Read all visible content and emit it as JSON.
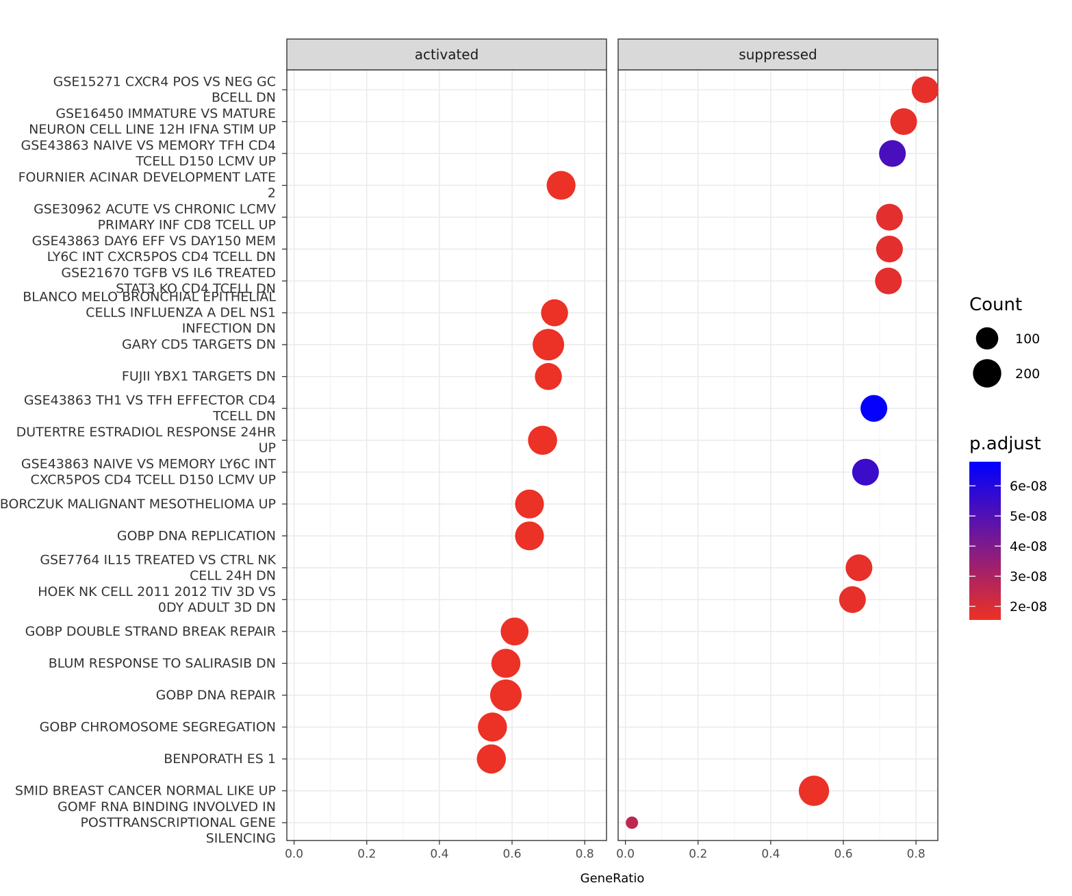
{
  "chart_data": {
    "type": "scatter",
    "xlabel": "GeneRatio",
    "xlim": [
      -0.02,
      0.86
    ],
    "x_ticks": [
      "0.0",
      "0.2",
      "0.4",
      "0.6",
      "0.8"
    ],
    "facets": [
      "activated",
      "suppressed"
    ],
    "categories": [
      "GSE15271 CXCR4 POS VS NEG GC BCELL DN",
      "GSE16450 IMMATURE VS MATURE NEURON CELL LINE 12H IFNA STIM UP",
      "GSE43863 NAIVE VS MEMORY TFH CD4 TCELL D150 LCMV UP",
      "FOURNIER ACINAR DEVELOPMENT LATE 2",
      "GSE30962 ACUTE VS CHRONIC LCMV PRIMARY INF CD8 TCELL UP",
      "GSE43863 DAY6 EFF VS DAY150 MEM LY6C INT CXCR5POS CD4 TCELL DN",
      "GSE21670 TGFB VS IL6 TREATED STAT3 KO CD4 TCELL DN",
      "BLANCO MELO BRONCHIAL EPITHELIAL CELLS INFLUENZA A DEL NS1 INFECTION DN",
      "GARY CD5 TARGETS DN",
      "FUJII YBX1 TARGETS DN",
      "GSE43863 TH1 VS TFH EFFECTOR CD4 TCELL DN",
      "DUTERTRE ESTRADIOL RESPONSE 24HR UP",
      "GSE43863 NAIVE VS MEMORY LY6C INT CXCR5POS CD4 TCELL D150 LCMV UP",
      "BORCZUK MALIGNANT MESOTHELIOMA UP",
      "GOBP DNA REPLICATION",
      "GSE7764 IL15 TREATED VS CTRL NK CELL 24H DN",
      "HOEK NK CELL 2011 2012 TIV 3D VS 0DY ADULT 3D DN",
      "GOBP DOUBLE STRAND BREAK REPAIR",
      "BLUM RESPONSE TO SALIRASIB DN",
      "GOBP DNA REPAIR",
      "GOBP CHROMOSOME SEGREGATION",
      "BENPORATH ES 1",
      "SMID BREAST CANCER NORMAL LIKE UP",
      "GOMF RNA BINDING INVOLVED IN POSTTRANSCRIPTIONAL GENE SILENCING"
    ],
    "points": [
      {
        "facet": "suppressed",
        "term": 0,
        "x": 0.825,
        "count": 170,
        "p_adjust": 1.7e-08
      },
      {
        "facet": "suppressed",
        "term": 1,
        "x": 0.766,
        "count": 170,
        "p_adjust": 1.7e-08
      },
      {
        "facet": "suppressed",
        "term": 2,
        "x": 0.735,
        "count": 170,
        "p_adjust": 5.2e-08
      },
      {
        "facet": "activated",
        "term": 3,
        "x": 0.735,
        "count": 210,
        "p_adjust": 1.6e-08
      },
      {
        "facet": "suppressed",
        "term": 4,
        "x": 0.727,
        "count": 170,
        "p_adjust": 1.8e-08
      },
      {
        "facet": "suppressed",
        "term": 5,
        "x": 0.727,
        "count": 170,
        "p_adjust": 1.8e-08
      },
      {
        "facet": "suppressed",
        "term": 6,
        "x": 0.724,
        "count": 170,
        "p_adjust": 1.8e-08
      },
      {
        "facet": "activated",
        "term": 7,
        "x": 0.717,
        "count": 175,
        "p_adjust": 1.6e-08
      },
      {
        "facet": "activated",
        "term": 8,
        "x": 0.7,
        "count": 265,
        "p_adjust": 1.6e-08
      },
      {
        "facet": "activated",
        "term": 9,
        "x": 0.7,
        "count": 175,
        "p_adjust": 1.6e-08
      },
      {
        "facet": "suppressed",
        "term": 10,
        "x": 0.684,
        "count": 170,
        "p_adjust": 6.7e-08
      },
      {
        "facet": "activated",
        "term": 11,
        "x": 0.684,
        "count": 215,
        "p_adjust": 1.6e-08
      },
      {
        "facet": "suppressed",
        "term": 12,
        "x": 0.661,
        "count": 170,
        "p_adjust": 5.5e-08
      },
      {
        "facet": "activated",
        "term": 13,
        "x": 0.648,
        "count": 210,
        "p_adjust": 1.6e-08
      },
      {
        "facet": "activated",
        "term": 14,
        "x": 0.648,
        "count": 210,
        "p_adjust": 1.6e-08
      },
      {
        "facet": "suppressed",
        "term": 15,
        "x": 0.643,
        "count": 170,
        "p_adjust": 1.7e-08
      },
      {
        "facet": "suppressed",
        "term": 16,
        "x": 0.625,
        "count": 170,
        "p_adjust": 1.7e-08
      },
      {
        "facet": "activated",
        "term": 17,
        "x": 0.607,
        "count": 190,
        "p_adjust": 1.6e-08
      },
      {
        "facet": "activated",
        "term": 18,
        "x": 0.583,
        "count": 215,
        "p_adjust": 1.6e-08
      },
      {
        "facet": "activated",
        "term": 19,
        "x": 0.583,
        "count": 265,
        "p_adjust": 1.6e-08
      },
      {
        "facet": "activated",
        "term": 20,
        "x": 0.546,
        "count": 215,
        "p_adjust": 1.6e-08
      },
      {
        "facet": "activated",
        "term": 21,
        "x": 0.543,
        "count": 215,
        "p_adjust": 1.6e-08
      },
      {
        "facet": "suppressed",
        "term": 22,
        "x": 0.519,
        "count": 240,
        "p_adjust": 1.6e-08
      },
      {
        "facet": "suppressed",
        "term": 23,
        "x": 0.018,
        "count": 10,
        "p_adjust": 2.6e-08
      }
    ],
    "legend": {
      "size_title": "Count",
      "size_entries": [
        {
          "label": "100",
          "count": 100
        },
        {
          "label": "200",
          "count": 200
        }
      ],
      "color_title": "p.adjust",
      "color_labels": [
        {
          "label": "6e-08",
          "value": 6e-08
        },
        {
          "label": "5e-08",
          "value": 5e-08
        },
        {
          "label": "4e-08",
          "value": 4e-08
        },
        {
          "label": "3e-08",
          "value": 3e-08
        },
        {
          "label": "2e-08",
          "value": 2e-08
        }
      ],
      "color_low": "#ee3124",
      "color_high": "#0000ff",
      "position": "right"
    }
  }
}
